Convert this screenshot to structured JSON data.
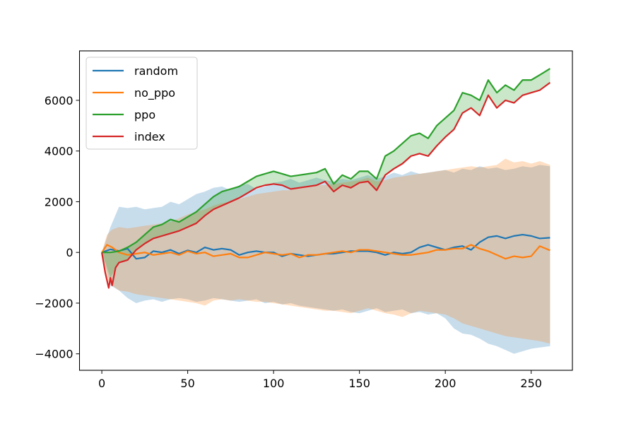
{
  "chart_data": {
    "type": "line",
    "title": "",
    "xlabel": "",
    "ylabel": "",
    "xlim": [
      -13,
      274
    ],
    "ylim": [
      -4650,
      7950
    ],
    "xticks": [
      0,
      50,
      100,
      150,
      200,
      250
    ],
    "yticks": [
      -4000,
      -2000,
      0,
      2000,
      4000,
      6000
    ],
    "xtick_labels": [
      "0",
      "50",
      "100",
      "150",
      "200",
      "250"
    ],
    "ytick_labels": [
      "−4000",
      "−2000",
      "0",
      "2000",
      "4000",
      "6000"
    ],
    "grid": false,
    "legend_position": "top-left",
    "series": [
      {
        "name": "random",
        "color": "#1f77b4",
        "x": [
          0,
          5,
          10,
          15,
          20,
          25,
          30,
          35,
          40,
          45,
          50,
          55,
          60,
          65,
          70,
          75,
          80,
          85,
          90,
          95,
          100,
          105,
          110,
          115,
          120,
          125,
          130,
          135,
          140,
          145,
          150,
          155,
          160,
          165,
          170,
          175,
          180,
          185,
          190,
          195,
          200,
          205,
          210,
          215,
          220,
          225,
          230,
          235,
          240,
          245,
          250,
          255,
          261
        ],
        "values": [
          0,
          120,
          60,
          150,
          -250,
          -200,
          50,
          0,
          100,
          -50,
          80,
          0,
          200,
          100,
          150,
          100,
          -100,
          0,
          50,
          0,
          0,
          -150,
          -50,
          -100,
          -150,
          -100,
          -50,
          -50,
          0,
          50,
          50,
          50,
          0,
          -100,
          0,
          -50,
          0,
          200,
          300,
          200,
          100,
          200,
          250,
          100,
          400,
          600,
          650,
          550,
          650,
          700,
          650,
          550,
          580
        ],
        "band_upper": [
          0,
          1000,
          1800,
          1750,
          1800,
          1700,
          1750,
          1800,
          2000,
          1900,
          2100,
          2300,
          2400,
          2550,
          2600,
          2450,
          2650,
          2700,
          2500,
          2600,
          2750,
          2800,
          2900,
          2750,
          2850,
          2950,
          2850,
          2800,
          2900,
          2850,
          2950,
          3050,
          2900,
          3000,
          3150,
          3050,
          3200,
          3100,
          3150,
          3200,
          3250,
          3150,
          3300,
          3250,
          3400,
          3300,
          3350,
          3250,
          3300,
          3400,
          3350,
          3450,
          3400
        ],
        "band_lower": [
          0,
          -1300,
          -1500,
          -1800,
          -2000,
          -1900,
          -1850,
          -1950,
          -1850,
          -1800,
          -1850,
          -1950,
          -1900,
          -1800,
          -1850,
          -1900,
          -1950,
          -1900,
          -1850,
          -2000,
          -1950,
          -2050,
          -2000,
          -2100,
          -2150,
          -2200,
          -2250,
          -2300,
          -2250,
          -2350,
          -2400,
          -2300,
          -2200,
          -2350,
          -2300,
          -2250,
          -2400,
          -2350,
          -2450,
          -2400,
          -2600,
          -3000,
          -3200,
          -3250,
          -3400,
          -3600,
          -3700,
          -3850,
          -4000,
          -3900,
          -3800,
          -3750,
          -3700
        ]
      },
      {
        "name": "no_ppo",
        "color": "#ff7f0e",
        "x": [
          0,
          3,
          6,
          10,
          15,
          20,
          25,
          30,
          35,
          40,
          45,
          50,
          55,
          60,
          65,
          70,
          75,
          80,
          85,
          90,
          95,
          100,
          105,
          110,
          115,
          120,
          125,
          130,
          135,
          140,
          145,
          150,
          155,
          160,
          165,
          170,
          175,
          180,
          185,
          190,
          195,
          200,
          205,
          210,
          215,
          220,
          225,
          230,
          235,
          240,
          245,
          250,
          255,
          261
        ],
        "values": [
          0,
          300,
          200,
          0,
          -100,
          -50,
          0,
          -100,
          -50,
          0,
          -100,
          50,
          -50,
          0,
          -150,
          -100,
          -50,
          -200,
          -200,
          -100,
          0,
          -50,
          -100,
          -50,
          -200,
          -100,
          -100,
          -50,
          0,
          50,
          0,
          100,
          100,
          50,
          0,
          -50,
          -100,
          -100,
          -50,
          0,
          100,
          100,
          150,
          150,
          300,
          150,
          50,
          -100,
          -250,
          -150,
          -200,
          -150,
          250,
          80
        ],
        "band_upper": [
          0,
          700,
          900,
          1000,
          950,
          1000,
          1050,
          1100,
          1150,
          1200,
          1350,
          1500,
          1600,
          1700,
          1850,
          1950,
          2000,
          2100,
          2200,
          2300,
          2350,
          2400,
          2450,
          2450,
          2550,
          2600,
          2650,
          2650,
          2700,
          2750,
          2800,
          2850,
          2950,
          2800,
          2850,
          2950,
          3000,
          3050,
          3100,
          3150,
          3200,
          3250,
          3300,
          3350,
          3400,
          3350,
          3400,
          3450,
          3700,
          3550,
          3600,
          3500,
          3600,
          3450
        ],
        "band_lower": [
          0,
          -1100,
          -1300,
          -1500,
          -1550,
          -1650,
          -1700,
          -1750,
          -1800,
          -1850,
          -1900,
          -1950,
          -2000,
          -2100,
          -1900,
          -1850,
          -1900,
          -1850,
          -1900,
          -1950,
          -1950,
          -2000,
          -2050,
          -2100,
          -2150,
          -2200,
          -2250,
          -2300,
          -2300,
          -2350,
          -2400,
          -2300,
          -2200,
          -2300,
          -2400,
          -2450,
          -2550,
          -2400,
          -2300,
          -2350,
          -2400,
          -2450,
          -2600,
          -2800,
          -2900,
          -3000,
          -3100,
          -3200,
          -3300,
          -3350,
          -3400,
          -3450,
          -3500,
          -3600
        ]
      },
      {
        "name": "ppo",
        "color": "#2ca02c",
        "x": [
          0,
          5,
          10,
          15,
          20,
          25,
          30,
          35,
          40,
          45,
          50,
          55,
          60,
          65,
          70,
          75,
          80,
          85,
          90,
          95,
          100,
          105,
          110,
          115,
          120,
          125,
          130,
          135,
          140,
          145,
          150,
          155,
          160,
          165,
          170,
          175,
          180,
          185,
          190,
          195,
          200,
          205,
          210,
          215,
          220,
          225,
          230,
          235,
          240,
          245,
          250,
          255,
          261
        ],
        "values": [
          0,
          0,
          50,
          200,
          400,
          700,
          1000,
          1100,
          1300,
          1200,
          1400,
          1600,
          1900,
          2200,
          2400,
          2500,
          2600,
          2800,
          3000,
          3100,
          3200,
          3100,
          3000,
          3050,
          3100,
          3150,
          3300,
          2700,
          3050,
          2900,
          3200,
          3200,
          2900,
          3800,
          4000,
          4300,
          4600,
          4700,
          4500,
          5000,
          5300,
          5600,
          6300,
          6200,
          6000,
          6800,
          6300,
          6600,
          6400,
          6800,
          6800,
          7000,
          7250
        ],
        "band_upper": [
          0,
          0,
          50,
          200,
          400,
          700,
          1000,
          1100,
          1300,
          1200,
          1400,
          1600,
          1900,
          2200,
          2400,
          2500,
          2600,
          2800,
          3000,
          3100,
          3200,
          3100,
          3000,
          3050,
          3100,
          3150,
          3300,
          2700,
          3050,
          2900,
          3200,
          3200,
          2900,
          3800,
          4000,
          4300,
          4600,
          4700,
          4500,
          5000,
          5300,
          5600,
          6300,
          6200,
          6000,
          6800,
          6300,
          6600,
          6400,
          6800,
          6800,
          7000,
          7250
        ],
        "band_lower": [
          0,
          -1000,
          -400,
          -300,
          100,
          350,
          550,
          650,
          750,
          850,
          1000,
          1150,
          1450,
          1700,
          1850,
          2000,
          2150,
          2350,
          2550,
          2650,
          2700,
          2650,
          2500,
          2550,
          2600,
          2650,
          2800,
          2400,
          2650,
          2550,
          2750,
          2800,
          2450,
          3050,
          3300,
          3500,
          3800,
          3900,
          3800,
          4200,
          4550,
          4850,
          5500,
          5700,
          5400,
          6200,
          5700,
          6000,
          5900,
          6200,
          6300,
          6400,
          6700
        ]
      },
      {
        "name": "index",
        "color": "#d62728",
        "x": [
          0,
          2,
          4,
          5,
          6,
          8,
          10,
          15,
          20,
          25,
          30,
          35,
          40,
          45,
          50,
          55,
          60,
          65,
          70,
          75,
          80,
          85,
          90,
          95,
          100,
          105,
          110,
          115,
          120,
          125,
          130,
          135,
          140,
          145,
          150,
          155,
          160,
          165,
          170,
          175,
          180,
          185,
          190,
          195,
          200,
          205,
          210,
          215,
          220,
          225,
          230,
          235,
          240,
          245,
          250,
          255,
          261
        ],
        "values": [
          0,
          -800,
          -1400,
          -1000,
          -1300,
          -600,
          -400,
          -300,
          100,
          350,
          550,
          650,
          750,
          850,
          1000,
          1150,
          1450,
          1700,
          1850,
          2000,
          2150,
          2350,
          2550,
          2650,
          2700,
          2650,
          2500,
          2550,
          2600,
          2650,
          2800,
          2400,
          2650,
          2550,
          2750,
          2800,
          2450,
          3050,
          3300,
          3500,
          3800,
          3900,
          3800,
          4200,
          4550,
          4850,
          5500,
          5700,
          5400,
          6200,
          5700,
          6000,
          5900,
          6200,
          6300,
          6400,
          6700
        ]
      }
    ]
  }
}
